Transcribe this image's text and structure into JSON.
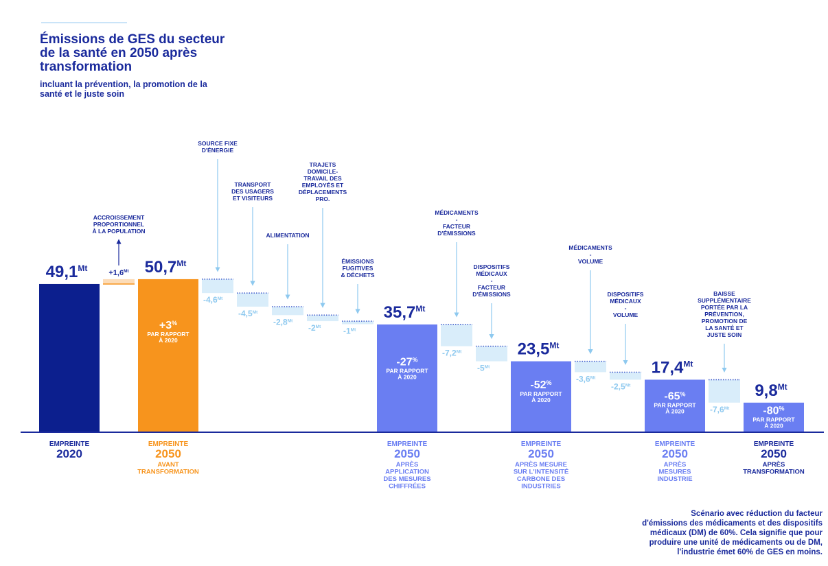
{
  "chart_data": {
    "type": "waterfall",
    "title": "Émissions de GES du secteur de la santé en 2050 après transformation",
    "subtitle": "incluant la prévention, la promotion de la santé et le juste soin",
    "unit": "Mt",
    "percent_unit": "%",
    "percent_note": [
      "PAR RAPPORT",
      "À 2020"
    ],
    "increase_color": "#fcdcb8",
    "decrease_color": "#d9edfa",
    "steps": [
      {
        "kind": "total",
        "value": 49.1,
        "value_label": "49,1",
        "color": "#0c1f8e",
        "name": "EMPREINTE",
        "year": "2020"
      },
      {
        "kind": "delta",
        "value": 1.6,
        "value_label": "+1,6",
        "annotation": [
          "ACCROISSEMENT",
          "PROPORTIONNEL",
          "À LA POPULATION"
        ]
      },
      {
        "kind": "total",
        "value": 50.7,
        "value_label": "50,7",
        "color": "#f7941d",
        "pct": 3,
        "pct_label": "+3",
        "name": "EMPREINTE",
        "year": "2050",
        "detail": [
          "AVANT",
          "TRANSFORMATION"
        ]
      },
      {
        "kind": "delta",
        "value": -4.6,
        "value_label": "-4,6",
        "annotation": [
          "SOURCE FIXE",
          "D'ÉNERGIE"
        ]
      },
      {
        "kind": "delta",
        "value": -4.5,
        "value_label": "-4,5",
        "annotation": [
          "TRANSPORT",
          "DES USAGERS",
          "ET VISITEURS"
        ]
      },
      {
        "kind": "delta",
        "value": -2.8,
        "value_label": "-2,8",
        "annotation": [
          "ALIMENTATION"
        ]
      },
      {
        "kind": "delta",
        "value": -2,
        "value_label": "-2",
        "annotation": [
          "TRAJETS",
          "DOMICILE-",
          "TRAVAIL DES",
          "EMPLOYÉS ET",
          "DÉPLACEMENTS",
          "PRO."
        ]
      },
      {
        "kind": "delta",
        "value": -1,
        "value_label": "-1",
        "annotation": [
          "ÉMISSIONS",
          "FUGITIVES",
          "& DÉCHETS"
        ]
      },
      {
        "kind": "total",
        "value": 35.7,
        "value_label": "35,7",
        "color": "#6a7ef2",
        "pct": -27,
        "pct_label": "-27",
        "name": "EMPREINTE",
        "year": "2050",
        "detail": [
          "APRÈS",
          "APPLICATION",
          "DES MESURES",
          "CHIFFRÉES"
        ]
      },
      {
        "kind": "delta",
        "value": -7.2,
        "value_label": "-7,2",
        "annotation": [
          "MÉDICAMENTS",
          "-",
          "FACTEUR",
          "D'ÉMISSIONS"
        ]
      },
      {
        "kind": "delta",
        "value": -5,
        "value_label": "-5",
        "annotation": [
          "DISPOSITIFS",
          "MÉDICAUX",
          "-",
          "FACTEUR",
          "D'ÉMISSIONS"
        ]
      },
      {
        "kind": "total",
        "value": 23.5,
        "value_label": "23,5",
        "color": "#6a7ef2",
        "pct": -52,
        "pct_label": "-52",
        "name": "EMPREINTE",
        "year": "2050",
        "detail": [
          "APRÈS MESURE",
          "SUR L'INTENSITÉ",
          "CARBONE DES",
          "INDUSTRIES"
        ]
      },
      {
        "kind": "delta",
        "value": -3.6,
        "value_label": "-3,6",
        "annotation": [
          "MÉDICAMENTS",
          "-",
          "VOLUME"
        ]
      },
      {
        "kind": "delta",
        "value": -2.5,
        "value_label": "-2,5",
        "annotation": [
          "DISPOSITIFS",
          "MÉDICAUX",
          "-",
          "VOLUME"
        ]
      },
      {
        "kind": "total",
        "value": 17.4,
        "value_label": "17,4",
        "color": "#6a7ef2",
        "pct": -65,
        "pct_label": "-65",
        "name": "EMPREINTE",
        "year": "2050",
        "detail": [
          "APRÈS",
          "MESURES",
          "INDUSTRIE"
        ]
      },
      {
        "kind": "delta",
        "value": -7.6,
        "value_label": "-7,6",
        "annotation": [
          "BAISSE",
          "SUPPLÉMENTAIRE",
          "PORTÉE PAR LA",
          "PRÉVENTION,",
          "PROMOTION DE",
          "LA SANTÉ ET",
          "JUSTE SOIN"
        ]
      },
      {
        "kind": "total",
        "value": 9.8,
        "value_label": "9,8",
        "color": "#6a7ef2",
        "pct": -80,
        "pct_label": "-80",
        "name": "EMPREINTE",
        "year": "2050",
        "detail": [
          "APRÈS",
          "TRANSFORMATION"
        ]
      }
    ],
    "footnote": [
      "Scénario avec réduction du facteur",
      "d'émissions des médicaments et des dispositifs",
      "médicaux (DM) de 60%. Cela signifie que pour",
      "produire une unité de médicaments ou de DM,",
      "l'industrie émet 60% de GES en moins."
    ]
  }
}
